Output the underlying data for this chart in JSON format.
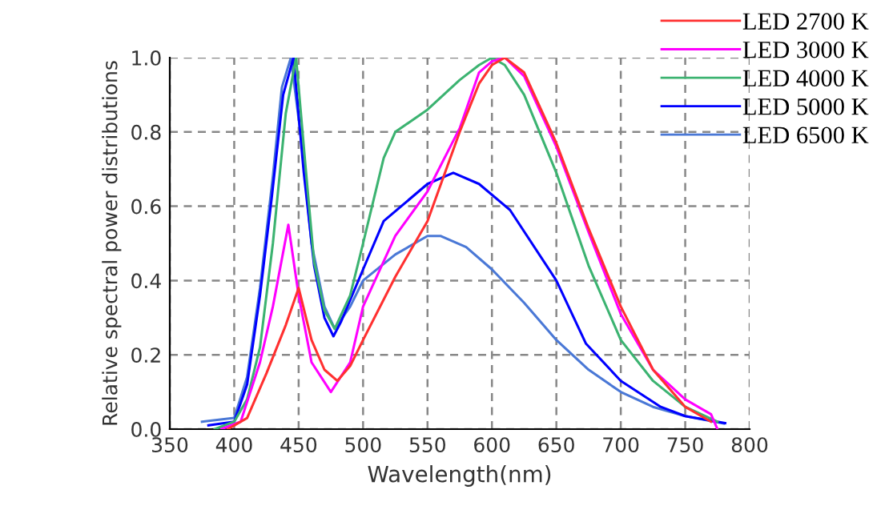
{
  "chart_data": {
    "type": "line",
    "xlabel": "Wavelength(nm)",
    "ylabel": "Relative spectral power distributions",
    "xlim": [
      350,
      800
    ],
    "xticks": [
      350,
      400,
      450,
      500,
      550,
      600,
      650,
      700,
      750,
      800
    ],
    "ylim": [
      0,
      1
    ],
    "yticks": [
      {
        "value": 0,
        "label": "0.0"
      },
      0.2,
      0.4,
      0.6,
      0.8,
      {
        "value": 1,
        "label": "1.0"
      }
    ],
    "grid": true,
    "line_style": "solid",
    "marker": "none",
    "legend": "top right",
    "series": [
      {
        "name": "LED 2700 K",
        "color": "#ff3030",
        "x": [
          395,
          410,
          425,
          440,
          450,
          460,
          470,
          480,
          490,
          500,
          525,
          550,
          575,
          590,
          600,
          610,
          625,
          650,
          675,
          700,
          725,
          750,
          770
        ],
        "values": [
          0,
          0.03,
          0.15,
          0.28,
          0.38,
          0.24,
          0.16,
          0.13,
          0.17,
          0.24,
          0.41,
          0.56,
          0.8,
          0.93,
          0.98,
          1.0,
          0.96,
          0.77,
          0.54,
          0.33,
          0.16,
          0.06,
          0.02
        ]
      },
      {
        "name": "LED 3000 K",
        "color": "#ff00ff",
        "x": [
          390,
          405,
          420,
          430,
          442,
          450,
          460,
          475,
          490,
          500,
          525,
          550,
          575,
          590,
          600,
          610,
          625,
          650,
          675,
          700,
          725,
          750,
          770,
          775
        ],
        "values": [
          0,
          0.02,
          0.18,
          0.33,
          0.55,
          0.36,
          0.18,
          0.1,
          0.18,
          0.33,
          0.52,
          0.64,
          0.81,
          0.96,
          0.99,
          1.0,
          0.95,
          0.76,
          0.53,
          0.31,
          0.16,
          0.08,
          0.04,
          0
        ]
      },
      {
        "name": "LED 4000 K",
        "color": "#3cb371",
        "x": [
          385,
          400,
          410,
          420,
          430,
          440,
          448,
          455,
          462,
          470,
          478,
          490,
          500,
          516,
          525,
          550,
          575,
          590,
          600,
          610,
          625,
          650,
          675,
          700,
          725,
          750,
          775
        ],
        "values": [
          0,
          0.02,
          0.08,
          0.22,
          0.5,
          0.85,
          1.0,
          0.72,
          0.45,
          0.32,
          0.27,
          0.36,
          0.5,
          0.73,
          0.8,
          0.86,
          0.94,
          0.98,
          1.0,
          0.98,
          0.9,
          0.69,
          0.44,
          0.24,
          0.13,
          0.06,
          0.02
        ]
      },
      {
        "name": "LED 5000 K",
        "color": "#0000ff",
        "x": [
          380,
          400,
          410,
          420,
          429,
          438,
          446,
          454,
          462,
          470,
          477,
          483,
          500,
          516,
          550,
          570,
          590,
          614,
          650,
          673,
          700,
          731,
          750,
          781
        ],
        "values": [
          0.01,
          0.02,
          0.12,
          0.36,
          0.62,
          0.9,
          1.0,
          0.69,
          0.44,
          0.3,
          0.25,
          0.29,
          0.43,
          0.56,
          0.66,
          0.69,
          0.66,
          0.59,
          0.4,
          0.23,
          0.13,
          0.06,
          0.035,
          0.016
        ]
      },
      {
        "name": "LED 6500 K",
        "color": "#4a78d6",
        "x": [
          375,
          400,
          410,
          420,
          430,
          437,
          444,
          452,
          460,
          470,
          478,
          490,
          500,
          525,
          550,
          560,
          580,
          600,
          625,
          650,
          675,
          700,
          725,
          750,
          780
        ],
        "values": [
          0.02,
          0.03,
          0.14,
          0.38,
          0.68,
          0.92,
          1.0,
          0.78,
          0.5,
          0.33,
          0.27,
          0.33,
          0.4,
          0.47,
          0.52,
          0.52,
          0.49,
          0.43,
          0.34,
          0.24,
          0.16,
          0.1,
          0.06,
          0.035,
          0.015
        ]
      }
    ]
  }
}
